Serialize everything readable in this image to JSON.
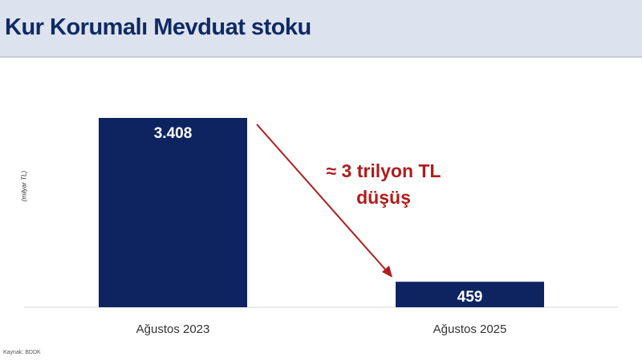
{
  "header": {
    "title": "Kur Korumalı Mevduat stoku"
  },
  "chart_data": {
    "type": "bar",
    "title": "Kur Korumalı Mevduat stoku",
    "categories": [
      "Ağustos 2023",
      "Ağustos 2025"
    ],
    "values": [
      3408,
      459
    ],
    "value_labels": [
      "3.408",
      "459"
    ],
    "ylabel": "(milyar TL)",
    "ylim": [
      0,
      3408
    ],
    "grid": false,
    "bar_color": "#0d2461",
    "annotation": {
      "lines": [
        "≈ 3 trilyon TL",
        "düşüş"
      ],
      "color": "#b01c1c"
    }
  },
  "source": "Kaynak: BDDK"
}
